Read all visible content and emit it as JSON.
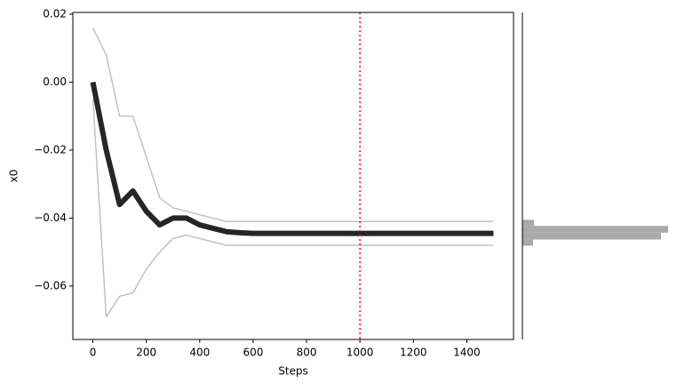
{
  "chart_data": [
    {
      "type": "line",
      "xlabel": "Steps",
      "ylabel": "x0",
      "x": [
        0,
        50,
        100,
        150,
        200,
        250,
        300,
        350,
        400,
        450,
        500,
        550,
        600,
        650,
        700,
        750,
        800,
        850,
        900,
        950,
        1000,
        1050,
        1100,
        1150,
        1200,
        1250,
        1300,
        1350,
        1400,
        1450,
        1500
      ],
      "series": [
        {
          "color": "#999999",
          "values": [
            0.016,
            0.008,
            -0.01,
            -0.01,
            -0.022,
            -0.034,
            -0.037,
            -0.038,
            -0.039,
            -0.04,
            -0.041,
            -0.041,
            -0.041,
            -0.041,
            -0.041,
            -0.041,
            -0.041,
            -0.041,
            -0.041,
            -0.041,
            -0.041,
            -0.041,
            -0.041,
            -0.041,
            -0.041,
            -0.041,
            -0.041,
            -0.041,
            -0.041,
            -0.041,
            -0.041
          ]
        },
        {
          "color": "#999999",
          "values": [
            -0.005,
            -0.069,
            -0.063,
            -0.062,
            -0.055,
            -0.05,
            -0.046,
            -0.045,
            -0.046,
            -0.047,
            -0.048,
            -0.048,
            -0.048,
            -0.048,
            -0.048,
            -0.048,
            -0.048,
            -0.048,
            -0.048,
            -0.048,
            -0.048,
            -0.048,
            -0.048,
            -0.048,
            -0.048,
            -0.048,
            -0.048,
            -0.048,
            -0.048,
            -0.048,
            -0.048
          ]
        },
        {
          "color": "#000000",
          "values": [
            0,
            -0.02,
            -0.036,
            -0.032,
            -0.038,
            -0.042,
            -0.04,
            -0.04,
            -0.042,
            -0.043,
            -0.044,
            -0.0443,
            -0.0445,
            -0.0445,
            -0.0445,
            -0.0445,
            -0.0445,
            -0.0445,
            -0.0445,
            -0.0445,
            -0.0445,
            -0.0445,
            -0.0445,
            -0.0445,
            -0.0445,
            -0.0445,
            -0.0445,
            -0.0445,
            -0.0445,
            -0.0445,
            -0.0445
          ]
        }
      ],
      "vline": {
        "x": 1000,
        "color": "#ff0000"
      },
      "xlim": [
        -75,
        1575
      ],
      "ylim": [
        -0.0757,
        0.0205
      ],
      "xticks": [
        0,
        200,
        400,
        600,
        800,
        1000,
        1200,
        1400
      ],
      "yticks": [
        {
          "value": -0.06,
          "label": "−0.06"
        },
        {
          "value": -0.04,
          "label": "−0.04"
        },
        {
          "value": -0.02,
          "label": "−0.02"
        },
        {
          "value": 0,
          "label": "0.00"
        },
        0.02
      ]
    },
    {
      "type": "histogram",
      "orientation": "horizontal",
      "color": "#aaaaaa",
      "bins": [
        -0.0405,
        -0.0423,
        -0.0443,
        -0.0463,
        -0.0481
      ],
      "counts": [
        13,
        164,
        156,
        12
      ],
      "xlim": [
        0,
        172
      ],
      "ylim": [
        -0.0757,
        0.0205
      ]
    }
  ]
}
